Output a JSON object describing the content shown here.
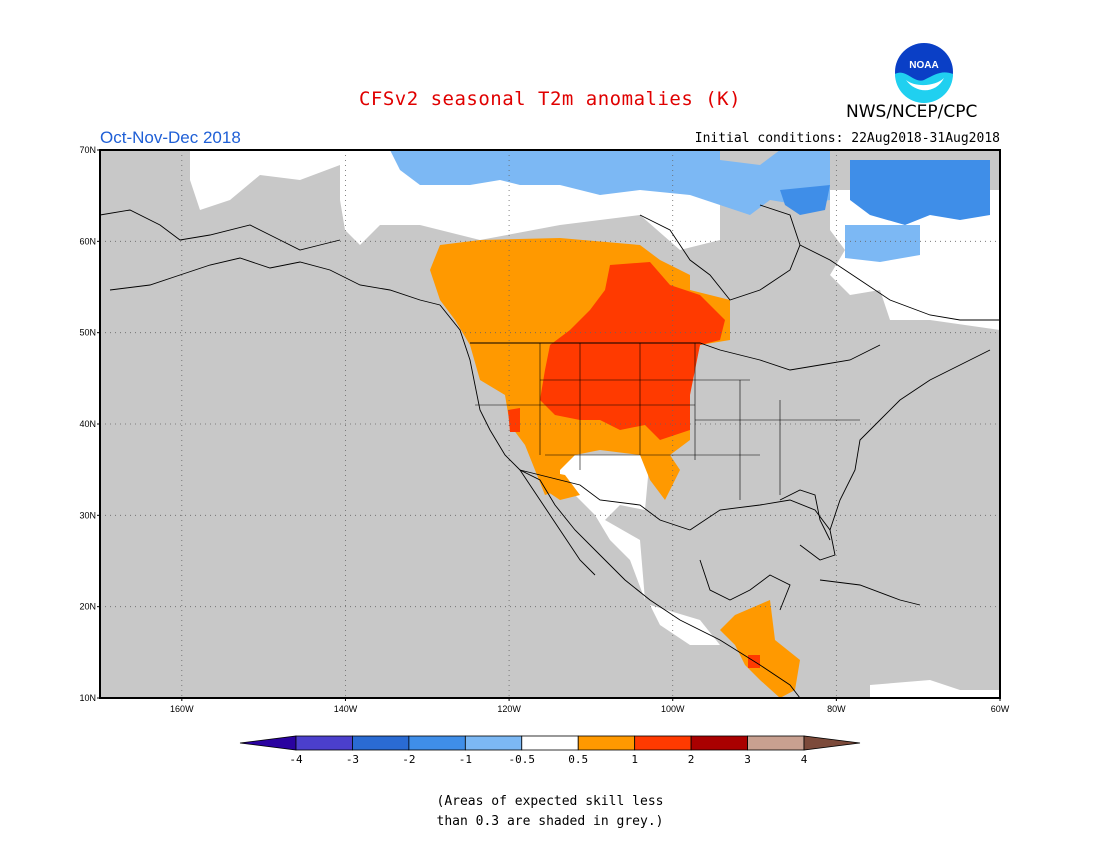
{
  "header": {
    "title": "CFSv2 seasonal T2m anomalies (K)",
    "period": "Oct-Nov-Dec 2018",
    "initial_conditions": "Initial conditions: 22Aug2018-31Aug2018",
    "agency": "NWS/NCEP/CPC",
    "logo_text": "NOAA",
    "logo_icon": "noaa-logo-icon"
  },
  "map": {
    "region": "North America",
    "lat_labels": [
      "70N",
      "60N",
      "50N",
      "40N",
      "30N",
      "20N",
      "10N"
    ],
    "lon_labels": [
      "160W",
      "140W",
      "120W",
      "100W",
      "80W",
      "60W"
    ],
    "lat_values": [
      70,
      60,
      50,
      40,
      30,
      20,
      10
    ],
    "lon_values": [
      -160,
      -140,
      -120,
      -100,
      -80,
      -60
    ],
    "lon_range": [
      -170,
      -60
    ],
    "lat_range": [
      10,
      70
    ],
    "grid": "dotted",
    "ocean_color": "#c8c8c8",
    "anomaly_regions": [
      {
        "name": "warm-northern-plains",
        "class": "1 to 2",
        "color": "#ff3a00"
      },
      {
        "name": "warm-western-canada",
        "class": "0.5 to 1",
        "color": "#ff9900"
      },
      {
        "name": "warm-central-america",
        "class": "0.5 to 1",
        "color": "#ff9900"
      },
      {
        "name": "cold-arctic-canada",
        "class": "-1 to -0.5",
        "color": "#7cb8f4"
      },
      {
        "name": "cold-baffin-labrador",
        "class": "-2 to -1",
        "color": "#3f8ee8"
      },
      {
        "name": "near-normal-arctic",
        "class": "-0.5 to 0.5",
        "color": "#ffffff"
      }
    ]
  },
  "colorbar": {
    "ticks": [
      "-4",
      "-3",
      "-2",
      "-1",
      "-0.5",
      "0.5",
      "1",
      "2",
      "3",
      "4"
    ],
    "colors": [
      "#2a02a0",
      "#4b3fcc",
      "#2a6bd3",
      "#3f8ee8",
      "#7cb8f4",
      "#ffffff",
      "#ff9900",
      "#ff3a00",
      "#a90000",
      "#c8a090",
      "#7c4a3a"
    ]
  },
  "footnote": {
    "line1": "(Areas of expected skill less",
    "line2": "than 0.3 are shaded in grey.)"
  }
}
